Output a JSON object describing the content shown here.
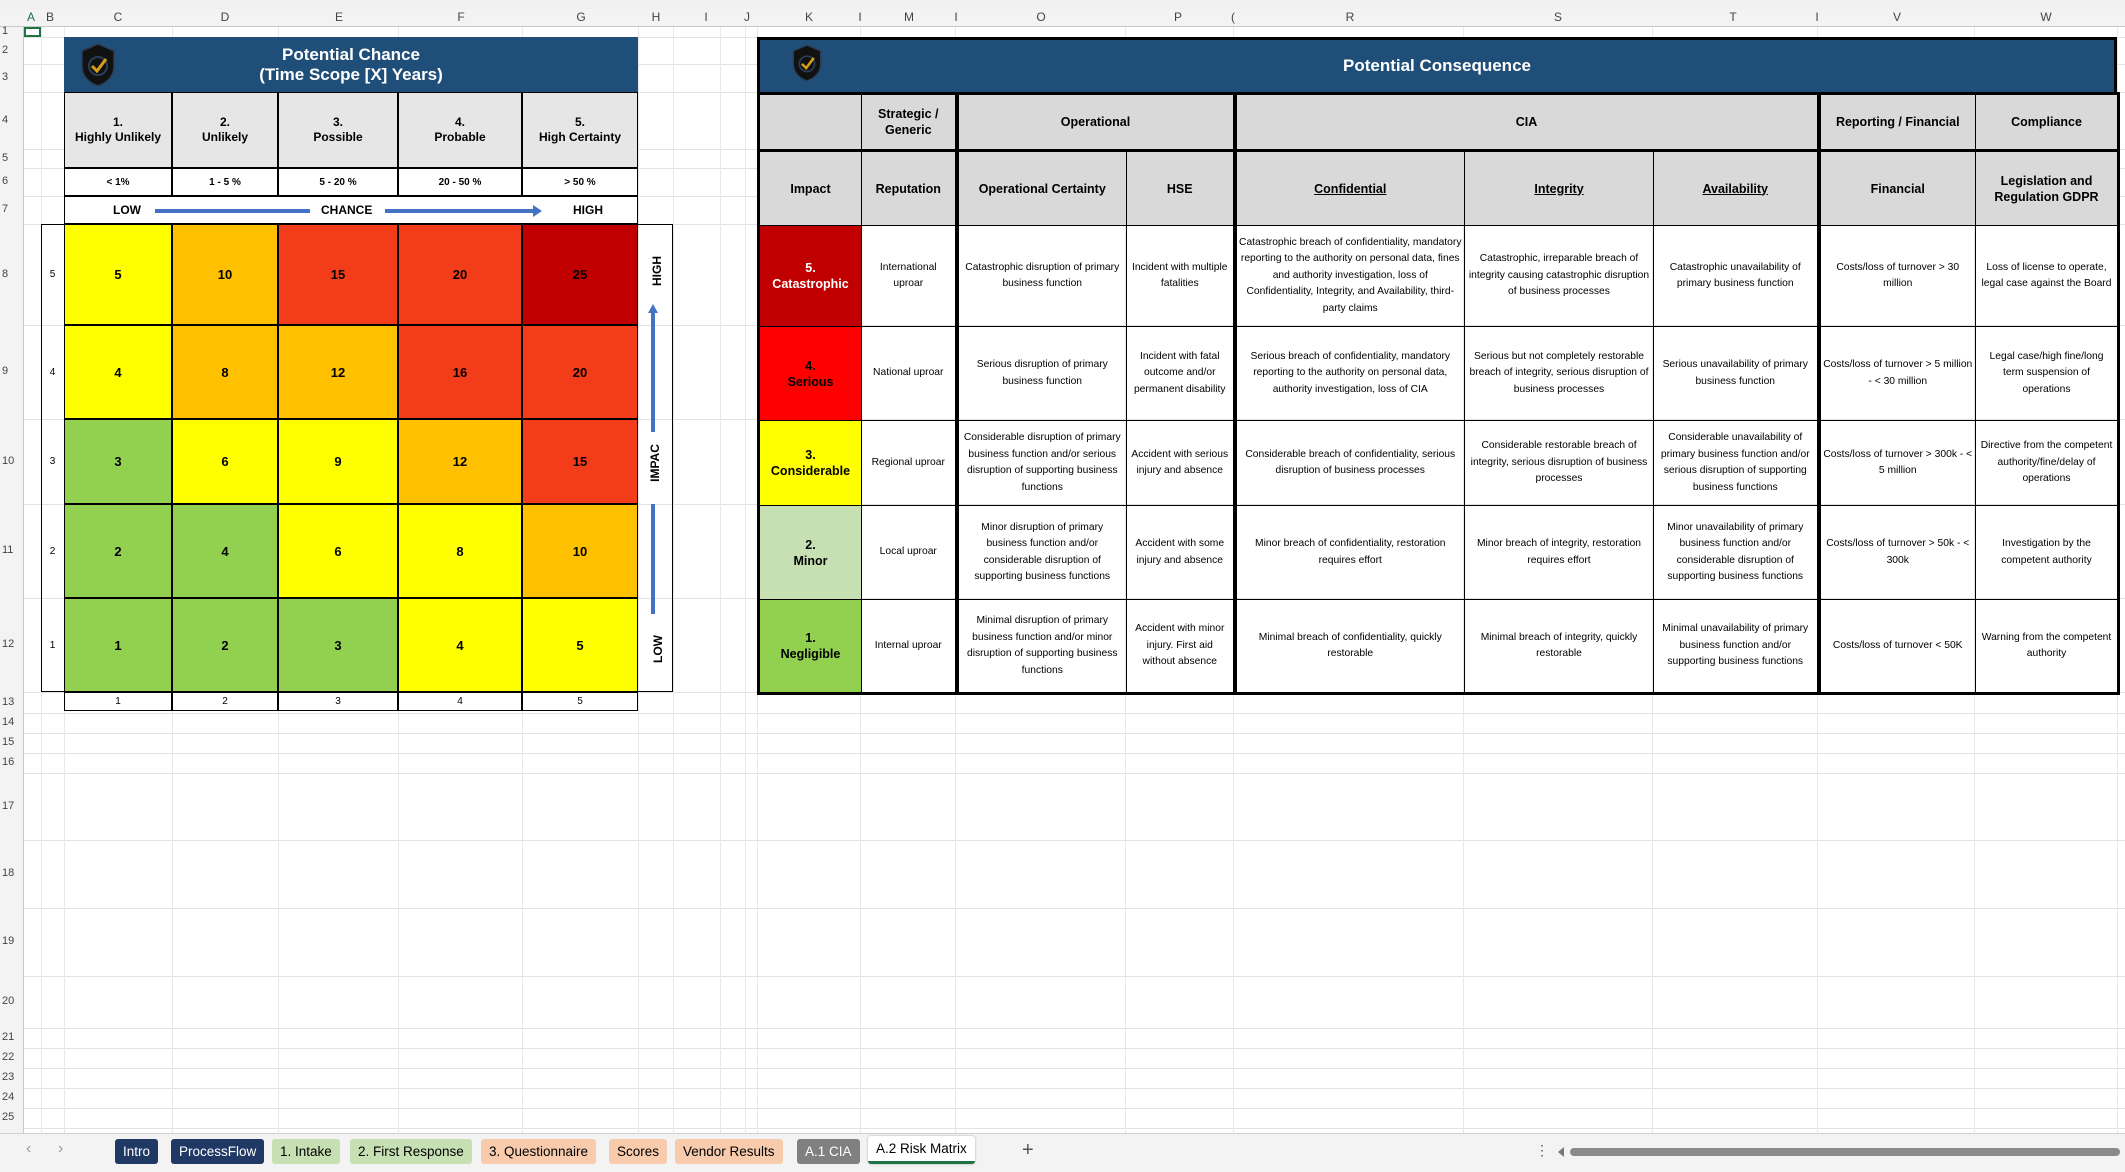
{
  "columns": [
    "A",
    "B",
    "C",
    "D",
    "E",
    "F",
    "G",
    "H",
    "I",
    "J",
    "K",
    "I",
    "M",
    "I",
    "O",
    "P",
    "(",
    "R",
    "S",
    "T",
    "I",
    "V",
    "W"
  ],
  "rows": [
    "1",
    "2",
    "3",
    "4",
    "5",
    "6",
    "7",
    "8",
    "9",
    "10",
    "11",
    "12",
    "13",
    "14",
    "15",
    "16",
    "17",
    "18",
    "19",
    "20",
    "21",
    "22",
    "23",
    "24",
    "25"
  ],
  "chance": {
    "title1": "Potential Chance",
    "title2": "(Time Scope [X] Years)",
    "levels": [
      {
        "num": "1.",
        "label": "Highly Unlikely",
        "pct": "< 1%"
      },
      {
        "num": "2.",
        "label": "Unlikely",
        "pct": "1 - 5 %"
      },
      {
        "num": "3.",
        "label": "Possible",
        "pct": "5 - 20 %"
      },
      {
        "num": "4.",
        "label": "Probable",
        "pct": "20 - 50 %"
      },
      {
        "num": "5.",
        "label": "High Certainty",
        "pct": "> 50 %"
      }
    ],
    "axis_low": "LOW",
    "axis_label": "CHANCE",
    "axis_high": "HIGH",
    "impact_high": "HIGH",
    "impact_label": "IMPAC",
    "impact_low": "LOW",
    "row_labels": [
      "5",
      "4",
      "3",
      "2",
      "1"
    ],
    "col_labels": [
      "1",
      "2",
      "3",
      "4",
      "5"
    ],
    "matrix": [
      [
        {
          "v": "5",
          "c": "#FFFF00"
        },
        {
          "v": "10",
          "c": "#FFC000"
        },
        {
          "v": "15",
          "c": "#F23C1A"
        },
        {
          "v": "20",
          "c": "#F23C1A"
        },
        {
          "v": "25",
          "c": "#C00000"
        }
      ],
      [
        {
          "v": "4",
          "c": "#FFFF00"
        },
        {
          "v": "8",
          "c": "#FFC000"
        },
        {
          "v": "12",
          "c": "#FFC000"
        },
        {
          "v": "16",
          "c": "#F23C1A"
        },
        {
          "v": "20",
          "c": "#F23C1A"
        }
      ],
      [
        {
          "v": "3",
          "c": "#92D050"
        },
        {
          "v": "6",
          "c": "#FFFF00"
        },
        {
          "v": "9",
          "c": "#FFFF00"
        },
        {
          "v": "12",
          "c": "#FFC000"
        },
        {
          "v": "15",
          "c": "#F23C1A"
        }
      ],
      [
        {
          "v": "2",
          "c": "#92D050"
        },
        {
          "v": "4",
          "c": "#92D050"
        },
        {
          "v": "6",
          "c": "#FFFF00"
        },
        {
          "v": "8",
          "c": "#FFFF00"
        },
        {
          "v": "10",
          "c": "#FFC000"
        }
      ],
      [
        {
          "v": "1",
          "c": "#92D050"
        },
        {
          "v": "2",
          "c": "#92D050"
        },
        {
          "v": "3",
          "c": "#92D050"
        },
        {
          "v": "4",
          "c": "#FFFF00"
        },
        {
          "v": "5",
          "c": "#FFFF00"
        }
      ]
    ]
  },
  "consequence": {
    "title": "Potential Consequence",
    "groups": [
      "Strategic / Generic",
      "Operational",
      "CIA",
      "Reporting / Financial",
      "Compliance"
    ],
    "headers": [
      "Impact",
      "Reputation",
      "Operational Certainty",
      "HSE",
      "Confidential",
      "Integrity",
      "Availability",
      "Financial",
      "Legislation and Regulation GDPR"
    ],
    "rows": [
      {
        "num": "5.",
        "impact": "Catastrophic",
        "color": "#C00000",
        "text": "#ffffff",
        "cells": [
          "International uproar",
          "Catastrophic disruption of primary business function",
          "Incident with multiple fatalities",
          "Catastrophic breach of confidentiality, mandatory reporting to the authority on personal data, fines and authority investigation, loss of Confidentiality, Integrity, and Availability, third-party claims",
          "Catastrophic, irreparable breach of integrity causing catastrophic disruption of business processes",
          "Catastrophic unavailability of primary business function",
          "Costs/loss of turnover > 30 million",
          "Loss of license to operate, legal case against the Board"
        ]
      },
      {
        "num": "4.",
        "impact": "Serious",
        "color": "#FF0000",
        "text": "#000000",
        "cells": [
          "National uproar",
          "Serious disruption of primary business function",
          "Incident with fatal outcome and/or permanent disability",
          "Serious breach of confidentiality, mandatory reporting to the authority on personal data, authority investigation, loss of CIA",
          "Serious but not completely restorable breach of integrity, serious disruption of business processes",
          "Serious unavailability of primary business function",
          "Costs/loss of turnover > 5 million - < 30 million",
          "Legal case/high fine/long term suspension of operations"
        ]
      },
      {
        "num": "3.",
        "impact": "Considerable",
        "color": "#FFFF00",
        "text": "#000000",
        "cells": [
          "Regional uproar",
          "Considerable disruption of primary business function and/or serious disruption of supporting business functions",
          "Accident with serious injury and absence",
          "Considerable breach of confidentiality, serious disruption of business processes",
          "Considerable restorable breach of integrity, serious disruption of business processes",
          "Considerable unavailability of primary business function and/or serious disruption of supporting business functions",
          "Costs/loss of turnover > 300k - < 5 million",
          "Directive from the competent authority/fine/delay of operations"
        ]
      },
      {
        "num": "2.",
        "impact": "Minor",
        "color": "#C6E0B4",
        "text": "#000000",
        "cells": [
          "Local uproar",
          "Minor disruption of primary business function and/or considerable disruption of supporting business functions",
          "Accident with some injury and absence",
          "Minor breach of confidentiality, restoration requires effort",
          "Minor breach of integrity, restoration requires effort",
          "Minor unavailability of primary business function and/or considerable disruption of supporting business functions",
          "Costs/loss of turnover > 50k - < 300k",
          "Investigation by the competent authority"
        ]
      },
      {
        "num": "1.",
        "impact": "Negligible",
        "color": "#92D050",
        "text": "#000000",
        "cells": [
          "Internal uproar",
          "Minimal disruption of primary business function and/or minor disruption of supporting business functions",
          "Accident with minor injury. First aid without absence",
          "Minimal breach of confidentiality, quickly restorable",
          "Minimal breach of integrity, quickly restorable",
          "Minimal unavailability of primary business function and/or supporting business functions",
          "Costs/loss of turnover < 50K",
          "Warning from the competent authority"
        ]
      }
    ]
  },
  "tabs": [
    {
      "label": "Intro",
      "bg": "#1f3864",
      "fg": "#ffffff"
    },
    {
      "label": "ProcessFlow",
      "bg": "#1f3864",
      "fg": "#ffffff"
    },
    {
      "label": "1. Intake",
      "bg": "#c6e0b4",
      "fg": "#000000"
    },
    {
      "label": "2. First Response",
      "bg": "#c6e0b4",
      "fg": "#000000"
    },
    {
      "label": "3. Questionnaire",
      "bg": "#f8cbad",
      "fg": "#000000"
    },
    {
      "label": "Scores",
      "bg": "#f8cbad",
      "fg": "#000000"
    },
    {
      "label": "Vendor Results",
      "bg": "#f8cbad",
      "fg": "#000000"
    },
    {
      "label": "A.1 CIA",
      "bg": "#808080",
      "fg": "#ffffff"
    },
    {
      "label": "A.2 Risk Matrix",
      "bg": "#ffffff",
      "fg": "#000000",
      "active": true
    }
  ],
  "add_sheet": "+",
  "accent": "#217346"
}
